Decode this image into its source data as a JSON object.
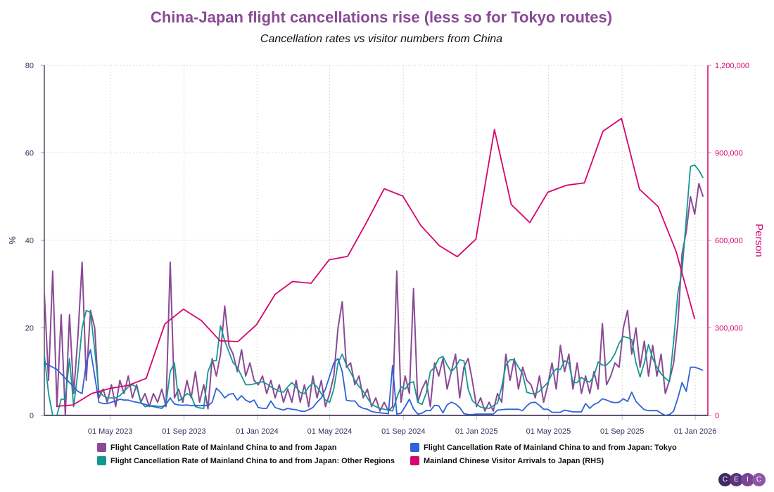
{
  "chart_data": {
    "type": "line",
    "title": "China-Japan flight cancellations rise (less so for Tokyo routes)",
    "subtitle": "Cancellation rates vs visitor numbers from China",
    "ylabel_left": "%",
    "ylabel_right": "Person",
    "ylim_left": [
      0,
      80
    ],
    "ylim_right": [
      0,
      1200000
    ],
    "yticks_left": [
      "0",
      "20",
      "40",
      "60",
      "80"
    ],
    "yticks_right": [
      "0",
      "300,000",
      "600,000",
      "900,000",
      "1,200,000"
    ],
    "xlim": [
      "2023-01-11",
      "2026-01-22"
    ],
    "xticks": [
      {
        "date": "2023-05-01",
        "label": "01 May 2023"
      },
      {
        "date": "2023-09-01",
        "label": "01 Sep 2023"
      },
      {
        "date": "2024-01-01",
        "label": "01 Jan 2024"
      },
      {
        "date": "2024-05-01",
        "label": "01 May 2024"
      },
      {
        "date": "2024-09-01",
        "label": "01 Sep 2024"
      },
      {
        "date": "2025-01-01",
        "label": "01 Jan 2025"
      },
      {
        "date": "2025-05-01",
        "label": "01 May 2025"
      },
      {
        "date": "2025-09-01",
        "label": "01 Sep 2025"
      },
      {
        "date": "2026-01-01",
        "label": "01 Jan 2026"
      }
    ],
    "grid": true,
    "legend_position": "bottom",
    "series": [
      {
        "name": "Flight Cancellation Rate of Mainland China to and from Japan",
        "color": "#8a4a96",
        "axis": "left",
        "start": "2023-01-11",
        "step_days": 7,
        "values": [
          28,
          8,
          33,
          2,
          23,
          0,
          23,
          5,
          18,
          35,
          8,
          24,
          20,
          4,
          6,
          3,
          7,
          2,
          8,
          5,
          9,
          4,
          7,
          3,
          5,
          2,
          5,
          3,
          6,
          2,
          35,
          4,
          6,
          3,
          8,
          4,
          10,
          3,
          7,
          1.5,
          13,
          9,
          14,
          25,
          16,
          14,
          10,
          15,
          9,
          12,
          8,
          7,
          9,
          5,
          8,
          4,
          7,
          3,
          6,
          3,
          8,
          3,
          7,
          2,
          9,
          4,
          8,
          2,
          5,
          9,
          20,
          26,
          11,
          12,
          7,
          9,
          4,
          6,
          2,
          4,
          1,
          3,
          1,
          2,
          33,
          3,
          9,
          5,
          29,
          3,
          6,
          8,
          2,
          12,
          9,
          13,
          6,
          10,
          14,
          4,
          11,
          13,
          8,
          2,
          4,
          1,
          3,
          1,
          5,
          3,
          14,
          8,
          13,
          6,
          11,
          8,
          7,
          4,
          9,
          3,
          7,
          12,
          6,
          16,
          10,
          14,
          6,
          12,
          5,
          9,
          5,
          10,
          6,
          21,
          7,
          9,
          12,
          11,
          20,
          24,
          14,
          20,
          11,
          17,
          9,
          16,
          9,
          14,
          5,
          8,
          12,
          21,
          37,
          42,
          50,
          46,
          53,
          50
        ]
      },
      {
        "name": "Flight Cancellation Rate of Mainland China to and from Japan: Other Regions",
        "color": "#13988f",
        "axis": "left",
        "start": "2023-01-11",
        "step_days": 7,
        "values": [
          13.8,
          5,
          0,
          0,
          3.7,
          3.7,
          13,
          2,
          10,
          20,
          24,
          23.5,
          15,
          5.5,
          4.5,
          4,
          4,
          4,
          4.5,
          5.5,
          6.5,
          7,
          6.5,
          3,
          2,
          2.2,
          2.2,
          2.1,
          2,
          2.5,
          10,
          12,
          3.3,
          4,
          5,
          4.5,
          2,
          1.7,
          1.6,
          10,
          12.5,
          12.5,
          20.5,
          17,
          14.5,
          12,
          11,
          9,
          7,
          7,
          7.2,
          7.5,
          7.7,
          7.2,
          6.5,
          6,
          5.5,
          5.3,
          6.5,
          7.5,
          6.5,
          5.2,
          5,
          6.5,
          7.4,
          6.5,
          5,
          3.5,
          3,
          6,
          12,
          14,
          11.5,
          9.8,
          8,
          6.6,
          5.5,
          4,
          2.5,
          2,
          1.6,
          1.4,
          1.2,
          1,
          4,
          6.6,
          6,
          7.4,
          7.7,
          3,
          2.5,
          5,
          10,
          11,
          13,
          13.5,
          11.5,
          10,
          11,
          12.7,
          12.5,
          6,
          3.4,
          2.5,
          1.9,
          1.7,
          1.6,
          2.2,
          2.8,
          6.5,
          11.5,
          12.7,
          12.7,
          11,
          9.5,
          5.3,
          5,
          5,
          5.5,
          6.5,
          7.5,
          9.5,
          10.6,
          10.5,
          12.5,
          12,
          7.5,
          7.5,
          8.7,
          8,
          7.6,
          9,
          12.2,
          11.5,
          11.5,
          12.5,
          14.1,
          16.5,
          18,
          17.8,
          17.3,
          12,
          8.8,
          12,
          16.2,
          13,
          11,
          9.5,
          8.5,
          7.7,
          17,
          28,
          33,
          45,
          56.9,
          57.2,
          56,
          54.3
        ]
      },
      {
        "name": "Flight Cancellation Rate of Mainland China to and from Japan: Tokyo",
        "color": "#2e62d6",
        "axis": "left",
        "start": "2023-01-11",
        "step_days": 7,
        "values": [
          12,
          11.5,
          11,
          10.5,
          9.5,
          8.5,
          7.5,
          6.5,
          5.5,
          5,
          12,
          15,
          9,
          3,
          2.7,
          2.7,
          3,
          3.3,
          3.7,
          3.5,
          3.5,
          3.2,
          3,
          2.8,
          2.5,
          2.2,
          2,
          1.8,
          1.6,
          2.5,
          4,
          2.6,
          2.4,
          2.3,
          2.4,
          2.2,
          2.3,
          2.2,
          2.3,
          2.2,
          3,
          6.2,
          5.3,
          4,
          4.8,
          5,
          3.5,
          4.5,
          3.5,
          3,
          3.5,
          1.8,
          1.6,
          1.6,
          3.3,
          1.8,
          1.5,
          1.2,
          1.6,
          1.4,
          1.3,
          1,
          0.9,
          1.3,
          1.8,
          3,
          4,
          6,
          9,
          12,
          13,
          10,
          3.5,
          3.3,
          3.3,
          2.1,
          1.6,
          1.4,
          0.9,
          0.7,
          0.6,
          0.5,
          0.4,
          11.4,
          0.3,
          0.5,
          2,
          3.7,
          1.5,
          0.3,
          0.5,
          1.1,
          1.1,
          2.3,
          2.2,
          0.6,
          2.4,
          3,
          2.6,
          1.8,
          0.4,
          0.2,
          0.2,
          0.3,
          0.3,
          0.3,
          0.3,
          0.3,
          1.2,
          1.3,
          1.4,
          1.4,
          1.4,
          1.4,
          1.1,
          2.2,
          2.9,
          3,
          2.3,
          1.4,
          1.4,
          0.7,
          0.7,
          0.7,
          1.2,
          1,
          0.8,
          0.8,
          0.8,
          2.7,
          1.6,
          2.5,
          2.9,
          3.8,
          3.5,
          3.1,
          2.9,
          3,
          3.8,
          3.2,
          5.3,
          3.2,
          2.2,
          1.3,
          1.1,
          1.1,
          1.1,
          0.5,
          0,
          0.2,
          1,
          4,
          7.5,
          5.5,
          11,
          11,
          10.7,
          10.3
        ]
      },
      {
        "name": "Mainland Chinese Visitor Arrivals to Japan (RHS)",
        "color": "#d6046f",
        "axis": "right",
        "x": [
          "2023-01-31",
          "2023-02-28",
          "2023-03-31",
          "2023-04-30",
          "2023-05-31",
          "2023-06-30",
          "2023-07-31",
          "2023-08-31",
          "2023-09-30",
          "2023-10-31",
          "2023-11-30",
          "2023-12-31",
          "2024-01-31",
          "2024-02-29",
          "2024-03-31",
          "2024-04-30",
          "2024-05-31",
          "2024-06-30",
          "2024-07-31",
          "2024-08-31",
          "2024-09-30",
          "2024-10-31",
          "2024-11-30",
          "2024-12-31",
          "2025-01-31",
          "2025-02-28",
          "2025-03-31",
          "2025-04-30",
          "2025-05-31",
          "2025-06-30",
          "2025-07-31",
          "2025-08-31",
          "2025-09-30",
          "2025-10-31",
          "2025-11-30",
          "2025-12-31"
        ],
        "values": [
          31000,
          36000,
          75000,
          92000,
          103000,
          127000,
          313000,
          364000,
          325000,
          256000,
          253000,
          311000,
          415000,
          459000,
          453000,
          533000,
          545000,
          656000,
          777000,
          752000,
          651000,
          582000,
          544000,
          604000,
          980000,
          723000,
          661000,
          765000,
          789000,
          797000,
          974000,
          1018000,
          775000,
          716000,
          562000,
          330000
        ]
      }
    ]
  },
  "legend": [
    {
      "label": "Flight Cancellation Rate of Mainland China to and from Japan",
      "color": "#8a4a96"
    },
    {
      "label": "Flight Cancellation Rate of Mainland China to and from Japan: Tokyo",
      "color": "#2e62d6"
    },
    {
      "label": "Flight Cancellation Rate of Mainland China to and from Japan: Other Regions",
      "color": "#13988f"
    },
    {
      "label": "Mainland Chinese Visitor Arrivals to Japan (RHS)",
      "color": "#d6046f"
    }
  ],
  "logo": {
    "letters": [
      "C",
      "E",
      "I",
      "C"
    ],
    "colors": [
      "#3f2a63",
      "#5b347f",
      "#7a4596",
      "#8d57a8"
    ]
  }
}
